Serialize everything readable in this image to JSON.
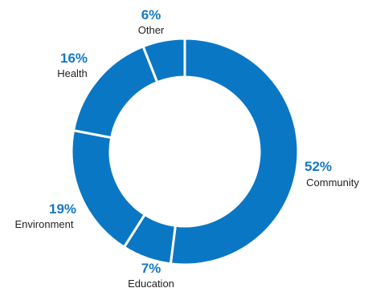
{
  "chart_data": {
    "type": "donut",
    "series": [
      {
        "label": "Community",
        "value": 52,
        "value_text": "52%"
      },
      {
        "label": "Education",
        "value": 7,
        "value_text": "7%"
      },
      {
        "label": "Environment",
        "value": 19,
        "value_text": "19%"
      },
      {
        "label": "Health",
        "value": 16,
        "value_text": "16%"
      },
      {
        "label": "Other",
        "value": 6,
        "value_text": "6%"
      }
    ],
    "start_angle_deg": 0,
    "direction": "clockwise",
    "colors": {
      "slice": "#0a77c4",
      "value_text": "#1479c4",
      "separator": "#ffffff",
      "label_text": "#222222"
    }
  }
}
